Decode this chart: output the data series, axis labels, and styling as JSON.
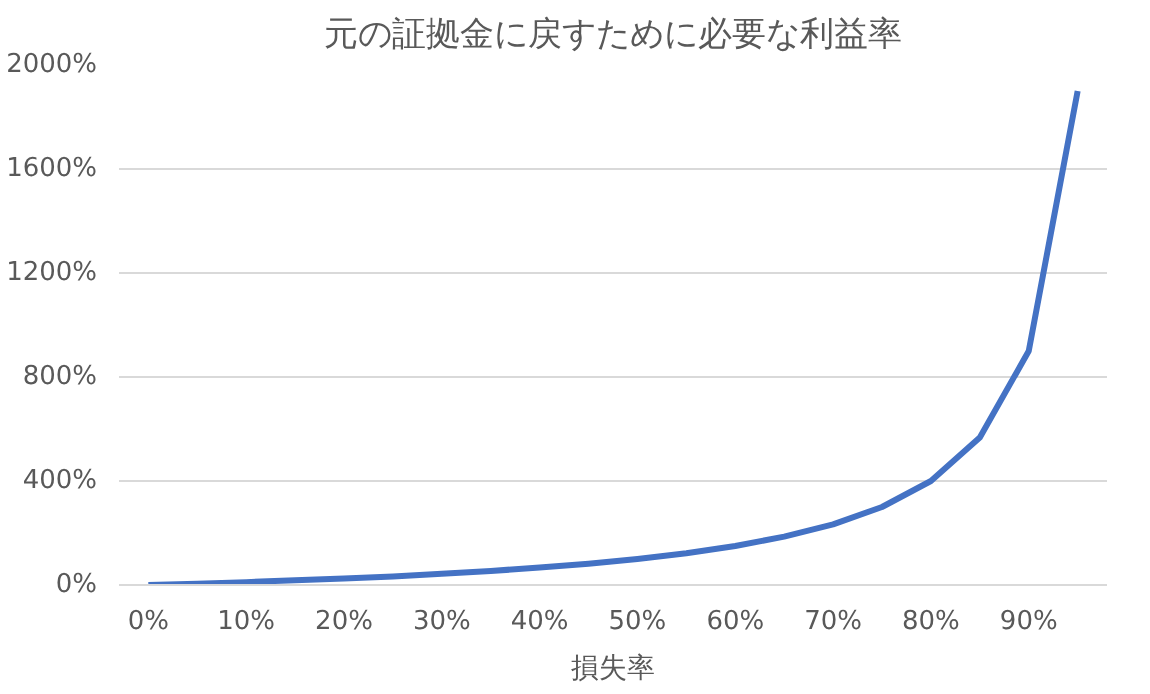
{
  "chart_data": {
    "type": "line",
    "title": "元の証拠金に戻すために必要な利益率",
    "xlabel": "損失率",
    "categories": [
      "0%",
      null,
      "10%",
      null,
      "20%",
      null,
      "30%",
      null,
      "40%",
      null,
      "50%",
      null,
      "60%",
      null,
      "70%",
      null,
      "80%",
      null,
      "90%",
      null
    ],
    "series": [
      {
        "color": "#4472c4",
        "values": [
          0,
          5,
          11,
          18,
          25,
          33,
          43,
          54,
          67,
          82,
          100,
          122,
          150,
          186,
          233,
          300,
          400,
          567,
          900,
          1900
        ]
      }
    ],
    "ylim": [
      0,
      2000
    ],
    "yticks": [
      {
        "value": 0,
        "label": "0%"
      },
      {
        "value": 400,
        "label": "400%"
      },
      {
        "value": 800,
        "label": "800%"
      },
      {
        "value": 1200,
        "label": "1200%"
      },
      {
        "value": 1600,
        "label": "1600%"
      },
      {
        "value": 2000,
        "label": "2000%"
      }
    ],
    "grid": "y",
    "marker": "none",
    "line_style": "solid"
  }
}
